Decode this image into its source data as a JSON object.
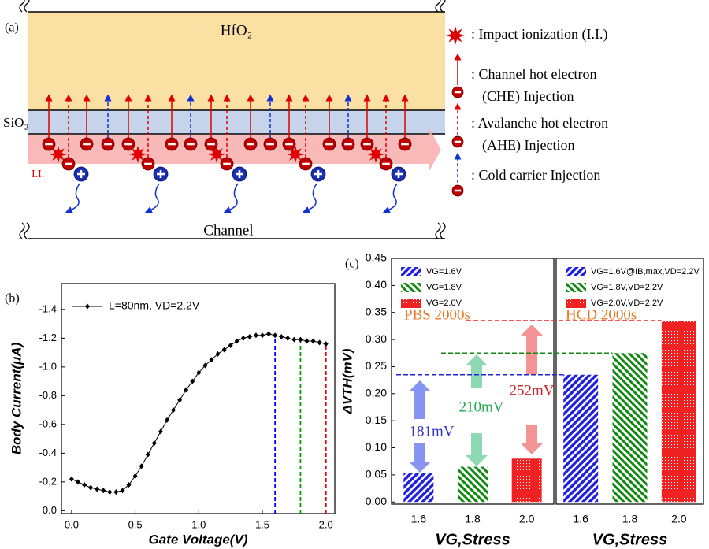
{
  "diagram": {
    "label": "(a)",
    "hfo2": "HfO₂",
    "sio2": "SiO₂",
    "ii": "I.I.",
    "channel": "Channel",
    "legend": [
      ": Impact ionization (I.I.)",
      ": Channel hot electron",
      "(CHE) Injection",
      ": Avalanche  hot electron",
      "(AHE) Injection",
      ": Cold carrier Injection"
    ]
  },
  "chart_data": [
    {
      "type": "line",
      "label": "(b)",
      "xlabel": "Gate Voltage(V)",
      "ylabel": "Body Current(μA)",
      "x": [
        0,
        0.05,
        0.1,
        0.15,
        0.2,
        0.25,
        0.3,
        0.35,
        0.4,
        0.45,
        0.5,
        0.55,
        0.6,
        0.65,
        0.7,
        0.75,
        0.8,
        0.85,
        0.9,
        0.95,
        1.0,
        1.05,
        1.1,
        1.15,
        1.2,
        1.25,
        1.3,
        1.35,
        1.4,
        1.45,
        1.5,
        1.55,
        1.6,
        1.65,
        1.7,
        1.75,
        1.8,
        1.85,
        1.9,
        1.95,
        2.0
      ],
      "series": [
        {
          "name": "L=80nm, VD=2.2V",
          "color": "#000000",
          "values": [
            -0.22,
            -0.2,
            -0.18,
            -0.16,
            -0.15,
            -0.14,
            -0.13,
            -0.13,
            -0.14,
            -0.18,
            -0.24,
            -0.31,
            -0.39,
            -0.47,
            -0.55,
            -0.63,
            -0.7,
            -0.77,
            -0.84,
            -0.9,
            -0.96,
            -1.01,
            -1.05,
            -1.09,
            -1.12,
            -1.15,
            -1.18,
            -1.2,
            -1.21,
            -1.22,
            -1.22,
            -1.23,
            -1.22,
            -1.21,
            -1.2,
            -1.19,
            -1.19,
            -1.18,
            -1.18,
            -1.17,
            -1.16
          ]
        }
      ],
      "markers": [
        {
          "x": 1.6,
          "color": "#0000ff"
        },
        {
          "x": 1.8,
          "color": "#00a000"
        },
        {
          "x": 2.0,
          "color": "#e00000"
        }
      ],
      "xlim": [
        -0.08,
        2.07
      ],
      "xticks": [
        {
          "value": 0,
          "label": "0.0"
        },
        0.5,
        {
          "value": 1,
          "label": "1.0"
        },
        1.5,
        {
          "value": 2,
          "label": "2.0"
        }
      ],
      "ylim": [
        0.02,
        -1.58
      ],
      "yticks": [
        {
          "value": 0,
          "label": "0.0"
        },
        -0.2,
        -0.4,
        -0.6,
        -0.8,
        {
          "value": -1,
          "label": "-1.0"
        },
        -1.2,
        -1.4
      ]
    },
    {
      "type": "bar",
      "label": "(c)",
      "title": "PBS 2000s",
      "xlabel": "VG,Stress",
      "ylabel": "ΔVTH(mV)",
      "categories": [
        "1.6",
        "1.8",
        "2.0"
      ],
      "series": [
        {
          "name": "VG=1.6V",
          "color": "#2222dd",
          "values": [
            0.053,
            null,
            null
          ]
        },
        {
          "name": "VG=1.8V",
          "color": "#118811",
          "values": [
            null,
            0.065,
            null
          ]
        },
        {
          "name": "VG=2.0V",
          "color": "#ee2222",
          "values": [
            null,
            null,
            0.08
          ]
        }
      ],
      "annotations": [
        {
          "text": "181mV",
          "color": "#3333cc"
        },
        {
          "text": "210mV",
          "color": "#22aa55"
        },
        {
          "text": "252mV",
          "color": "#cc2222"
        }
      ],
      "ylim": [
        -0.004,
        0.45
      ],
      "yticks": [
        {
          "value": 0,
          "label": "0.00"
        },
        0.05,
        {
          "value": 0.1,
          "label": "0.10"
        },
        0.15,
        {
          "value": 0.2,
          "label": "0.20"
        },
        0.25,
        {
          "value": 0.3,
          "label": "0.30"
        },
        0.35,
        {
          "value": 0.4,
          "label": "0.40"
        },
        0.45
      ]
    },
    {
      "type": "bar",
      "title": "HCD 2000s",
      "xlabel": "VG,Stress",
      "categories": [
        "1.6",
        "1.8",
        "2.0"
      ],
      "series": [
        {
          "name": "VG=1.6V@IB,max,VD=2.2V",
          "color": "#2222dd",
          "values": [
            0.235,
            null,
            null
          ]
        },
        {
          "name": "VG=1.8V,VD=2.2V",
          "color": "#118811",
          "values": [
            null,
            0.275,
            null
          ]
        },
        {
          "name": "VG=2.0V,VD=2.2V",
          "color": "#ee2222",
          "values": [
            null,
            null,
            0.335
          ]
        }
      ],
      "ylim": [
        -0.004,
        0.45
      ]
    }
  ]
}
